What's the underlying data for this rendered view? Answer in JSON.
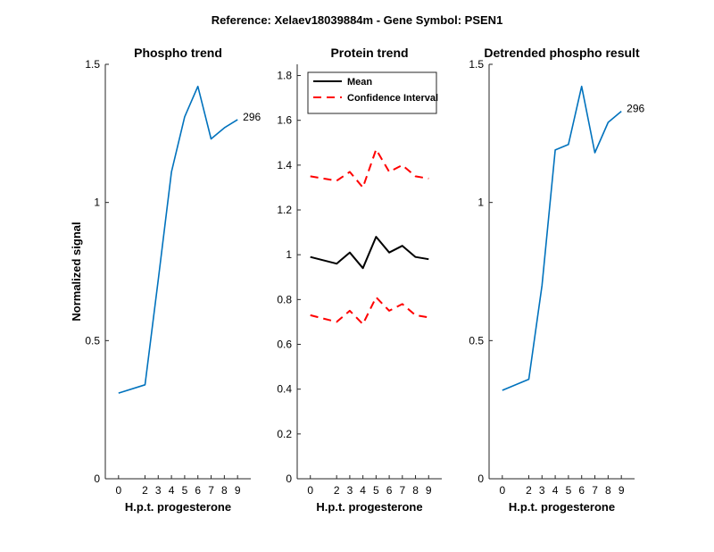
{
  "figure": {
    "suptitle": "Reference:  Xelaev18039884m - Gene Symbol:  PSEN1",
    "y_label": "Normalized signal"
  },
  "chart_data": [
    {
      "id": "phospho",
      "type": "line",
      "title": "Phospho trend",
      "xlabel": "H.p.t. progesterone",
      "ylabel": "Normalized signal",
      "x": [
        0,
        2,
        3,
        4,
        5,
        6,
        7,
        8,
        9
      ],
      "xticks": [
        "0",
        "2",
        "3",
        "4",
        "5",
        "6",
        "7",
        "8",
        "9"
      ],
      "ylim": [
        0,
        1.5
      ],
      "yticks": [
        "0",
        "0.5",
        "1",
        "1.5"
      ],
      "grid": false,
      "series": [
        {
          "values": [
            0.31,
            0.34,
            0.72,
            1.11,
            1.31,
            1.42,
            1.23,
            1.27,
            1.3
          ],
          "color": "#0072BD",
          "style": "solid"
        }
      ],
      "annotations": [
        {
          "text": "296"
        }
      ]
    },
    {
      "id": "protein",
      "type": "line",
      "title": "Protein trend",
      "xlabel": "H.p.t. progesterone",
      "x": [
        0,
        2,
        3,
        4,
        5,
        6,
        7,
        8,
        9
      ],
      "xticks": [
        "0",
        "2",
        "3",
        "4",
        "5",
        "6",
        "7",
        "8",
        "9"
      ],
      "ylim": [
        0,
        1.85
      ],
      "yticks": [
        "0",
        "0.2",
        "0.4",
        "0.6",
        "0.8",
        "1",
        "1.2",
        "1.4",
        "1.6",
        "1.8"
      ],
      "grid": false,
      "legend_position": "top-left",
      "series": [
        {
          "name": "Mean",
          "values": [
            0.99,
            0.96,
            1.01,
            0.94,
            1.08,
            1.01,
            1.04,
            0.99,
            0.98
          ],
          "color": "#000000",
          "style": "solid"
        },
        {
          "name": "Confidence Interval",
          "values": [
            1.35,
            1.33,
            1.37,
            1.3,
            1.47,
            1.37,
            1.4,
            1.35,
            1.34
          ],
          "color": "#ff0000",
          "style": "dashed",
          "in_legend": true
        },
        {
          "name": "",
          "values": [
            0.73,
            0.7,
            0.75,
            0.69,
            0.81,
            0.75,
            0.78,
            0.73,
            0.72
          ],
          "color": "#ff0000",
          "style": "dashed",
          "in_legend": false
        }
      ]
    },
    {
      "id": "detrended",
      "type": "line",
      "title": "Detrended phospho result",
      "xlabel": "H.p.t. progesterone",
      "x": [
        0,
        2,
        3,
        4,
        5,
        6,
        7,
        8,
        9
      ],
      "xticks": [
        "0",
        "2",
        "3",
        "4",
        "5",
        "6",
        "7",
        "8",
        "9"
      ],
      "ylim": [
        0,
        1.5
      ],
      "yticks": [
        "0",
        "0.5",
        "1",
        "1.5"
      ],
      "grid": false,
      "series": [
        {
          "values": [
            0.32,
            0.36,
            0.7,
            1.19,
            1.21,
            1.42,
            1.18,
            1.29,
            1.33
          ],
          "color": "#0072BD",
          "style": "solid"
        }
      ],
      "annotations": [
        {
          "text": "296"
        }
      ]
    }
  ]
}
